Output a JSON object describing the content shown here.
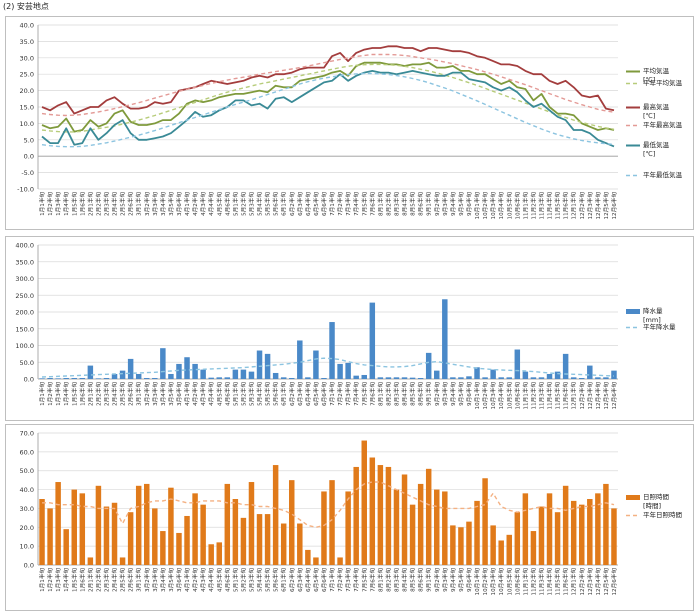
{
  "page_title": "(2) 安芸地点",
  "chart_data": [
    {
      "type": "line",
      "ylim": [
        -10,
        40
      ],
      "yticks": [
        "-10.0",
        "-5.0",
        "0.0",
        "5.0",
        "10.0",
        "15.0",
        "20.0",
        "25.0",
        "30.0",
        "35.0",
        "40.0"
      ],
      "grid": true,
      "legend_position": "right",
      "categories": [
        "1月1半旬",
        "1月2半旬",
        "1月3半旬",
        "1月4半旬",
        "1月5半旬",
        "1月6半旬",
        "2月1半旬",
        "2月2半旬",
        "2月3半旬",
        "2月4半旬",
        "2月5半旬",
        "2月6半旬",
        "3月1半旬",
        "3月2半旬",
        "3月3半旬",
        "3月4半旬",
        "3月5半旬",
        "3月6半旬",
        "4月1半旬",
        "4月2半旬",
        "4月3半旬",
        "4月4半旬",
        "4月5半旬",
        "4月6半旬",
        "5月1半旬",
        "5月2半旬",
        "5月3半旬",
        "5月4半旬",
        "5月5半旬",
        "5月6半旬",
        "6月1半旬",
        "6月2半旬",
        "6月3半旬",
        "6月4半旬",
        "6月5半旬",
        "6月6半旬",
        "7月1半旬",
        "7月2半旬",
        "7月3半旬",
        "7月4半旬",
        "7月5半旬",
        "7月6半旬",
        "8月1半旬",
        "8月2半旬",
        "8月3半旬",
        "8月4半旬",
        "8月5半旬",
        "8月6半旬",
        "9月1半旬",
        "9月2半旬",
        "9月3半旬",
        "9月4半旬",
        "9月5半旬",
        "9月6半旬",
        "10月1半旬",
        "10月2半旬",
        "10月3半旬",
        "10月4半旬",
        "10月5半旬",
        "10月6半旬",
        "11月1半旬",
        "11月2半旬",
        "11月3半旬",
        "11月4半旬",
        "11月5半旬",
        "11月6半旬",
        "12月1半旬",
        "12月2半旬",
        "12月3半旬",
        "12月4半旬",
        "12月5半旬",
        "12月6半旬"
      ],
      "series": [
        {
          "name": "平均気温 [℃]",
          "color": "#7f9a3c",
          "style": "solid",
          "values": [
            9.5,
            8.5,
            9,
            11.5,
            7.5,
            8,
            11,
            9,
            10,
            13,
            14,
            10.5,
            9.5,
            9.5,
            10,
            11,
            11,
            13,
            16,
            17,
            16.5,
            17,
            18,
            18.5,
            19,
            19,
            19.5,
            20,
            19.5,
            21.5,
            21,
            21,
            23,
            23.5,
            24,
            24.5,
            25.5,
            26,
            24.5,
            27.5,
            28.5,
            28.5,
            28.5,
            28,
            28,
            27.5,
            28,
            28,
            28.5,
            27,
            27,
            27.5,
            26,
            26,
            25,
            25,
            23.5,
            22,
            23,
            21,
            20.5,
            17,
            19,
            15,
            13,
            13,
            12.5,
            10,
            9,
            8,
            8.5,
            8
          ]
        },
        {
          "name": "平年平均気温",
          "color": "#b7cc7a",
          "style": "dash",
          "values": [
            8,
            7.7,
            7.5,
            7.4,
            7.4,
            7.6,
            8,
            8.4,
            8.8,
            9.2,
            9.8,
            10.4,
            11,
            11.7,
            12.4,
            13.2,
            14,
            14.8,
            15.6,
            16.4,
            17.2,
            18,
            18.8,
            19.5,
            20.2,
            20.8,
            21.4,
            22,
            22.5,
            23,
            23.5,
            24,
            24.5,
            25,
            25.5,
            26,
            26.5,
            27,
            27.4,
            27.7,
            27.9,
            28,
            28,
            27.9,
            27.7,
            27.4,
            27,
            26.5,
            26,
            25.4,
            24.7,
            24,
            23.2,
            22.4,
            21.6,
            20.7,
            19.8,
            18.9,
            18,
            17.1,
            16.2,
            15.3,
            14.4,
            13.5,
            12.6,
            11.8,
            11,
            10.3,
            9.7,
            9.1,
            8.6,
            8.2
          ]
        },
        {
          "name": "最高気温 [℃]",
          "color": "#a33d3d",
          "style": "solid",
          "values": [
            15,
            14,
            15.5,
            16.5,
            13,
            14,
            15,
            15,
            17,
            18,
            16,
            14.5,
            14.5,
            15,
            16.5,
            16,
            16.5,
            20,
            20.5,
            21,
            22,
            23,
            22.5,
            22,
            22.5,
            23,
            24,
            24.5,
            24,
            25,
            25,
            25.5,
            26.5,
            27,
            27,
            27,
            30.5,
            31.5,
            29,
            31.5,
            32.5,
            33,
            33,
            33.5,
            33.5,
            33,
            33,
            32,
            33,
            33,
            32.5,
            32,
            32,
            31.5,
            30.5,
            30,
            29,
            28,
            28,
            27.5,
            26,
            25,
            25,
            23,
            22,
            23,
            21,
            18.5,
            18,
            18.5,
            14.5,
            14
          ]
        },
        {
          "name": "平年最高気温",
          "color": "#e39a96",
          "style": "dash",
          "values": [
            13,
            12.7,
            12.5,
            12.4,
            12.5,
            12.7,
            13.1,
            13.5,
            14,
            14.5,
            15.1,
            15.7,
            16.3,
            17,
            17.7,
            18.4,
            19.1,
            19.8,
            20.4,
            21,
            21.6,
            22.2,
            22.7,
            23.2,
            23.7,
            24.1,
            24.5,
            25,
            25.4,
            25.8,
            26.2,
            26.6,
            27,
            27.5,
            28,
            28.5,
            29,
            29.5,
            30,
            30.4,
            30.7,
            31,
            31,
            31,
            30.9,
            30.7,
            30.4,
            30,
            29.6,
            29.2,
            28.7,
            28.2,
            27.6,
            27,
            26.4,
            25.7,
            25,
            24.2,
            23.4,
            22.6,
            21.8,
            20.9,
            20,
            19.1,
            18.2,
            17.3,
            16.5,
            15.7,
            15,
            14.3,
            13.8,
            13.4
          ]
        },
        {
          "name": "最低気温 [℃]",
          "color": "#3a8a96",
          "style": "solid",
          "values": [
            6,
            4,
            4,
            8.5,
            3.5,
            4,
            8.5,
            5,
            7,
            9.5,
            11,
            7,
            5,
            5,
            5.5,
            6,
            7,
            9,
            11,
            13.5,
            12,
            12.5,
            14,
            15,
            17,
            17,
            15.5,
            16,
            14.5,
            17.5,
            18,
            16.5,
            18,
            19.5,
            21,
            22.5,
            23,
            25,
            23,
            24.5,
            25.5,
            26,
            25.5,
            25.5,
            25,
            25.5,
            26,
            25.5,
            25,
            24.5,
            24.5,
            25.5,
            25.5,
            23.5,
            23,
            22.5,
            21,
            20,
            21,
            19.5,
            17,
            15,
            16,
            14,
            12,
            11,
            8,
            8,
            7,
            5,
            4,
            3
          ]
        },
        {
          "name": "平年最低気温",
          "color": "#8cc4e0",
          "style": "dash",
          "values": [
            3.5,
            3.2,
            3,
            2.9,
            2.9,
            3,
            3.3,
            3.7,
            4.1,
            4.6,
            5.2,
            5.8,
            6.4,
            7.1,
            7.8,
            8.6,
            9.4,
            10.2,
            11,
            11.8,
            12.6,
            13.4,
            14.2,
            15,
            15.8,
            16.5,
            17.2,
            18,
            18.8,
            19.6,
            20.4,
            21.2,
            22,
            22.7,
            23.3,
            23.8,
            24.2,
            24.6,
            24.9,
            25.1,
            25.2,
            25.2,
            25.1,
            24.9,
            24.6,
            24.2,
            23.7,
            23.1,
            22.4,
            21.6,
            20.8,
            19.9,
            18.9,
            17.9,
            16.9,
            15.8,
            14.7,
            13.6,
            12.5,
            11.4,
            10.3,
            9.3,
            8.3,
            7.4,
            6.6,
            5.9,
            5.3,
            4.8,
            4.4,
            4.1,
            3.8,
            3.6
          ]
        }
      ]
    },
    {
      "type": "bar",
      "ylim": [
        0,
        400
      ],
      "yticks": [
        "0.0",
        "50.0",
        "100.0",
        "150.0",
        "200.0",
        "250.0",
        "300.0",
        "350.0",
        "400.0"
      ],
      "grid": true,
      "legend_position": "right",
      "categories": [
        "1月1半旬",
        "1月2半旬",
        "1月3半旬",
        "1月4半旬",
        "1月5半旬",
        "1月6半旬",
        "2月1半旬",
        "2月2半旬",
        "2月3半旬",
        "2月4半旬",
        "2月5半旬",
        "2月6半旬",
        "3月1半旬",
        "3月2半旬",
        "3月3半旬",
        "3月4半旬",
        "3月5半旬",
        "3月6半旬",
        "4月1半旬",
        "4月2半旬",
        "4月3半旬",
        "4月4半旬",
        "4月5半旬",
        "4月6半旬",
        "5月1半旬",
        "5月2半旬",
        "5月3半旬",
        "5月4半旬",
        "5月5半旬",
        "5月6半旬",
        "6月1半旬",
        "6月2半旬",
        "6月3半旬",
        "6月4半旬",
        "6月5半旬",
        "6月6半旬",
        "7月1半旬",
        "7月2半旬",
        "7月3半旬",
        "7月4半旬",
        "7月5半旬",
        "7月6半旬",
        "8月1半旬",
        "8月2半旬",
        "8月3半旬",
        "8月4半旬",
        "8月5半旬",
        "8月6半旬",
        "9月1半旬",
        "9月2半旬",
        "9月3半旬",
        "9月4半旬",
        "9月5半旬",
        "9月6半旬",
        "10月1半旬",
        "10月2半旬",
        "10月3半旬",
        "10月4半旬",
        "10月5半旬",
        "10月6半旬",
        "11月1半旬",
        "11月2半旬",
        "11月3半旬",
        "11月4半旬",
        "11月5半旬",
        "11月6半旬",
        "12月1半旬",
        "12月2半旬",
        "12月3半旬",
        "12月4半旬",
        "12月5半旬",
        "12月6半旬"
      ],
      "series": [
        {
          "name": "降水量 [mm]",
          "color": "#4a89c8",
          "type": "bar",
          "values": [
            2,
            3,
            2,
            3,
            3,
            3,
            40,
            2,
            3,
            15,
            25,
            60,
            15,
            3,
            3,
            92,
            15,
            45,
            65,
            45,
            28,
            4,
            5,
            5,
            28,
            28,
            22,
            85,
            75,
            18,
            5,
            3,
            115,
            5,
            85,
            3,
            170,
            45,
            48,
            10,
            12,
            228,
            5,
            5,
            5,
            5,
            4,
            3,
            78,
            25,
            238,
            5,
            5,
            8,
            35,
            5,
            28,
            5,
            5,
            88,
            22,
            5,
            5,
            15,
            22,
            75,
            5,
            3,
            40,
            5,
            5,
            25
          ]
        },
        {
          "name": "平年降水量",
          "color": "#8cc4e0",
          "type": "dash-line",
          "values": [
            6,
            7,
            8,
            9,
            10,
            11,
            12,
            13,
            14,
            15,
            16,
            17,
            18,
            19,
            20,
            22,
            24,
            26,
            27,
            28,
            29,
            30,
            31,
            32,
            33,
            34,
            36,
            38,
            40,
            42,
            44,
            47,
            50,
            55,
            60,
            62,
            61,
            58,
            52,
            46,
            42,
            40,
            38,
            36,
            36,
            37,
            40,
            45,
            50,
            52,
            48,
            44,
            40,
            36,
            32,
            30,
            28,
            27,
            26,
            25,
            24,
            22,
            20,
            18,
            16,
            15,
            14,
            13,
            12,
            11,
            10,
            9
          ]
        }
      ]
    },
    {
      "type": "bar",
      "ylim": [
        0,
        70
      ],
      "yticks": [
        "0.0",
        "10.0",
        "20.0",
        "30.0",
        "40.0",
        "50.0",
        "60.0",
        "70.0"
      ],
      "grid": true,
      "legend_position": "right",
      "categories": [
        "1月1半旬",
        "1月2半旬",
        "1月3半旬",
        "1月4半旬",
        "1月5半旬",
        "1月6半旬",
        "2月1半旬",
        "2月2半旬",
        "2月3半旬",
        "2月4半旬",
        "2月5半旬",
        "2月6半旬",
        "3月1半旬",
        "3月2半旬",
        "3月3半旬",
        "3月4半旬",
        "3月5半旬",
        "3月6半旬",
        "4月1半旬",
        "4月2半旬",
        "4月3半旬",
        "4月4半旬",
        "4月5半旬",
        "4月6半旬",
        "5月1半旬",
        "5月2半旬",
        "5月3半旬",
        "5月4半旬",
        "5月5半旬",
        "5月6半旬",
        "6月1半旬",
        "6月2半旬",
        "6月3半旬",
        "6月4半旬",
        "6月5半旬",
        "6月6半旬",
        "7月1半旬",
        "7月2半旬",
        "7月3半旬",
        "7月4半旬",
        "7月5半旬",
        "7月6半旬",
        "8月1半旬",
        "8月2半旬",
        "8月3半旬",
        "8月4半旬",
        "8月5半旬",
        "8月6半旬",
        "9月1半旬",
        "9月2半旬",
        "9月3半旬",
        "9月4半旬",
        "9月5半旬",
        "9月6半旬",
        "10月1半旬",
        "10月2半旬",
        "10月3半旬",
        "10月4半旬",
        "10月5半旬",
        "10月6半旬",
        "11月1半旬",
        "11月2半旬",
        "11月3半旬",
        "11月4半旬",
        "11月5半旬",
        "11月6半旬",
        "12月1半旬",
        "12月2半旬",
        "12月3半旬",
        "12月4半旬",
        "12月5半旬",
        "12月6半旬"
      ],
      "series": [
        {
          "name": "日照時間 [時間]",
          "color": "#e07a1a",
          "type": "bar",
          "values": [
            35,
            30,
            44,
            19,
            40,
            38,
            4,
            42,
            31,
            33,
            4,
            28,
            42,
            43,
            30,
            18,
            41,
            17,
            26,
            38,
            32,
            11,
            12,
            43,
            35,
            25,
            44,
            27,
            27,
            53,
            22,
            45,
            22,
            8,
            4,
            39,
            45,
            4,
            39,
            52,
            66,
            57,
            53,
            52,
            40,
            48,
            32,
            43,
            51,
            40,
            39,
            21,
            20,
            23,
            34,
            46,
            21,
            13,
            16,
            28,
            38,
            18,
            31,
            38,
            28,
            42,
            34,
            32,
            35,
            38,
            43,
            30
          ]
        },
        {
          "name": "平年日照時間",
          "color": "#f4b183",
          "type": "dash-line",
          "values": [
            33,
            33,
            32,
            32,
            32,
            31,
            31,
            30,
            30,
            30,
            22,
            30,
            31,
            33,
            34,
            34,
            35,
            34,
            33,
            33,
            34,
            34,
            34,
            33,
            33,
            32,
            32,
            31,
            31,
            30,
            29,
            27,
            24,
            21,
            20,
            21,
            24,
            29,
            35,
            40,
            43,
            44,
            44,
            42,
            40,
            38,
            36,
            34,
            32,
            31,
            30,
            30,
            30,
            30,
            31,
            32,
            38,
            31,
            29,
            28,
            29,
            30,
            31,
            30,
            30,
            29,
            30,
            31,
            31,
            32,
            33,
            32
          ]
        }
      ]
    }
  ]
}
